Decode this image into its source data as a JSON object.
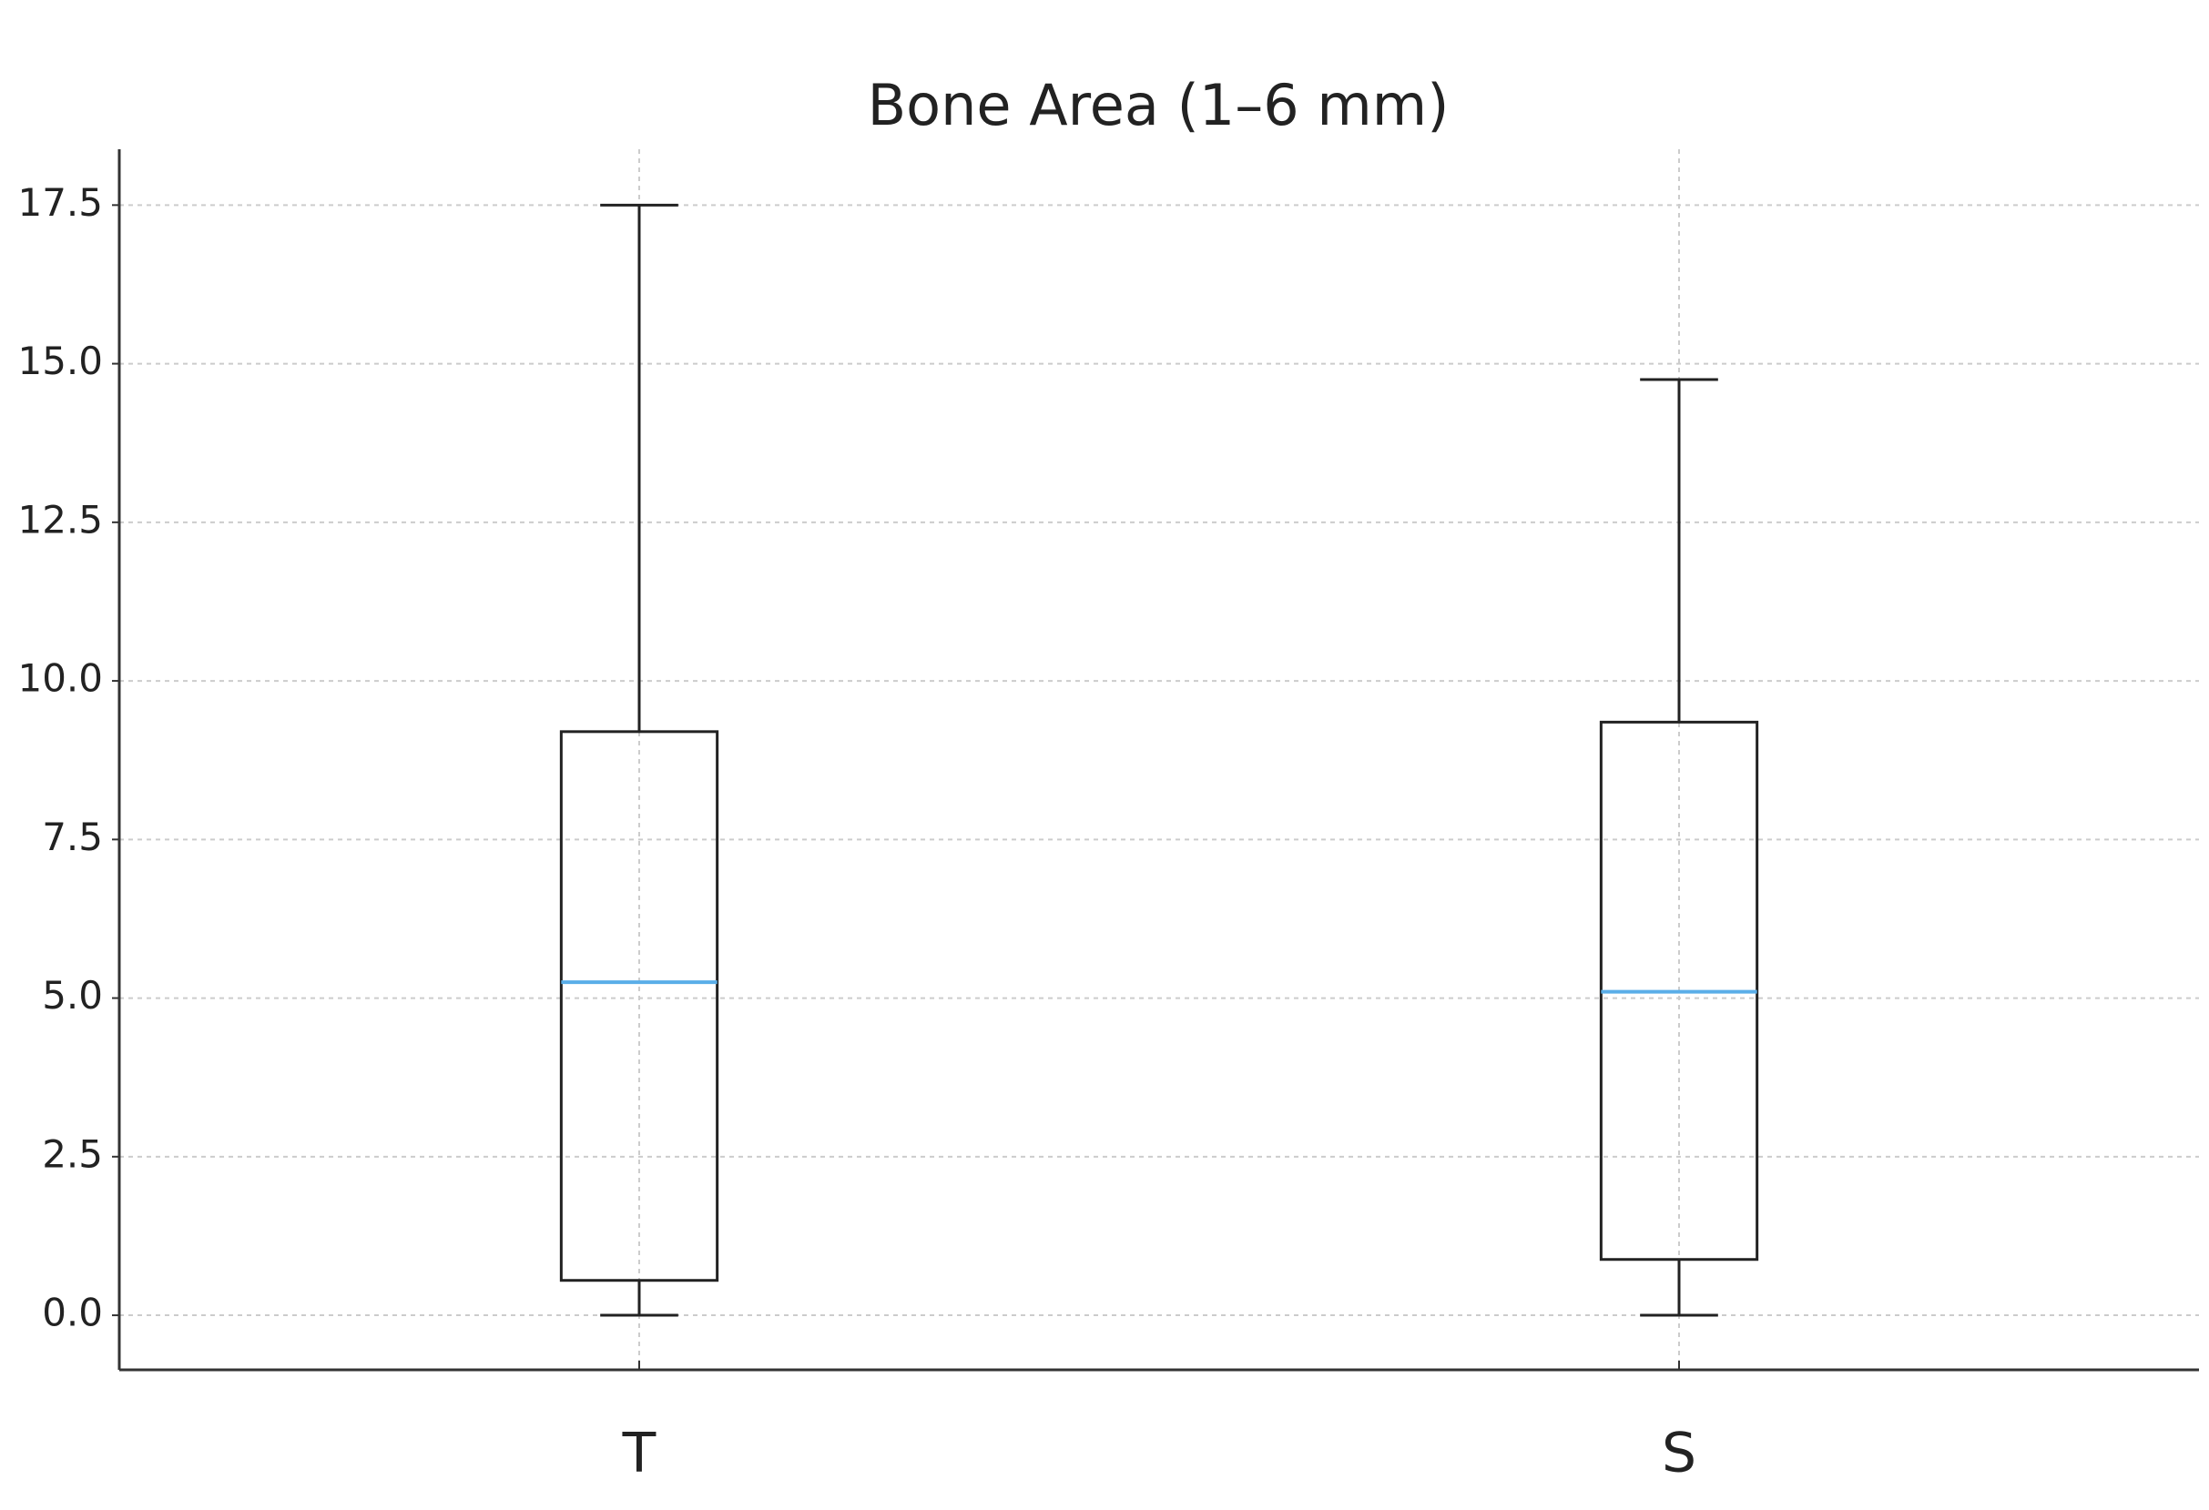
{
  "chart_data": {
    "type": "box",
    "title": "Bone Area (1–6 mm)",
    "categories": [
      "T",
      "S"
    ],
    "boxes": [
      {
        "whislo": 0,
        "q1": 0.55,
        "med": 5.25,
        "q3": 9.2,
        "whishi": 17.5
      },
      {
        "whislo": 0,
        "q1": 0.88,
        "med": 5.1,
        "q3": 9.35,
        "whishi": 14.75
      }
    ],
    "color": "#222222",
    "median_color": "#5aaee8",
    "ylim": [
      -0.86,
      18.38
    ],
    "yticks": [
      {
        "value": 0,
        "label": "0.0"
      },
      2.5,
      {
        "value": 5,
        "label": "5.0"
      },
      7.5,
      {
        "value": 10,
        "label": "10.0"
      },
      12.5,
      {
        "value": 15,
        "label": "15.0"
      },
      17.5
    ],
    "grid": true
  }
}
